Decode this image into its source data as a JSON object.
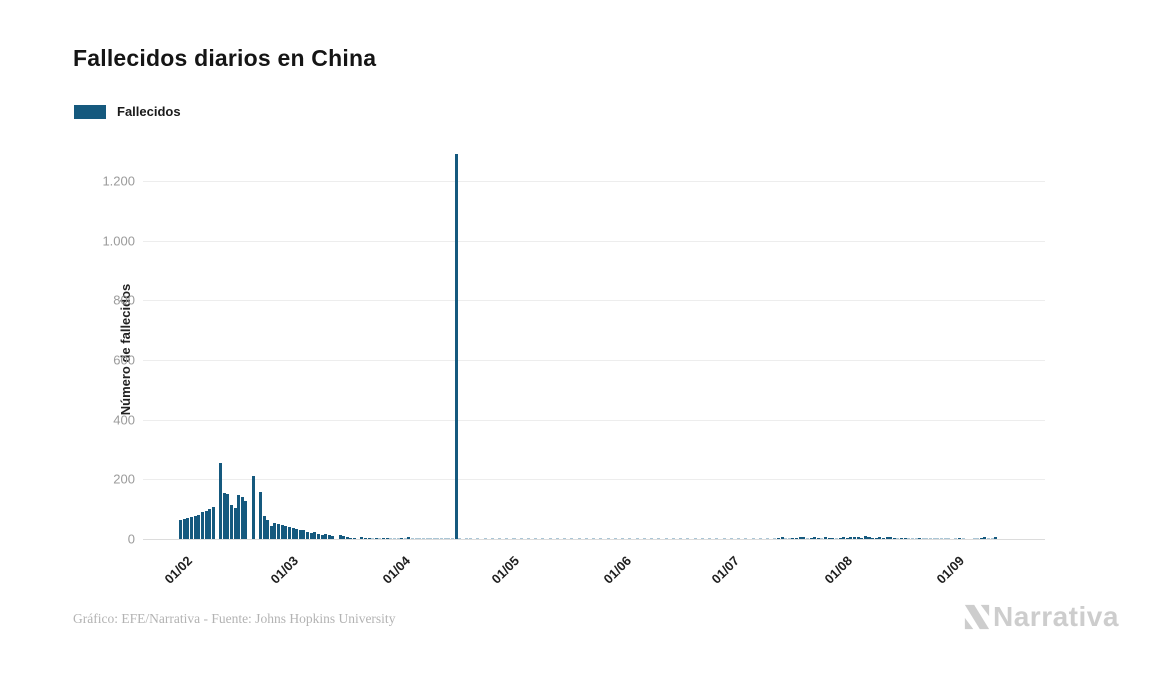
{
  "title": "Fallecidos diarios en China",
  "legend": {
    "label": "Fallecidos",
    "color": "#15597e"
  },
  "y_axis": {
    "title": "Número de fallecidos",
    "tick_labels": [
      "0",
      "200",
      "400",
      "600",
      "800",
      "1.000",
      "1.200"
    ],
    "tick_values": [
      0,
      200,
      400,
      600,
      800,
      1000,
      1200
    ]
  },
  "x_axis": {
    "ticks": [
      {
        "label": "01/02",
        "index": 10
      },
      {
        "label": "01/03",
        "index": 39
      },
      {
        "label": "01/04",
        "index": 70
      },
      {
        "label": "01/05",
        "index": 100
      },
      {
        "label": "01/06",
        "index": 131
      },
      {
        "label": "01/07",
        "index": 161
      },
      {
        "label": "01/08",
        "index": 192
      },
      {
        "label": "01/09",
        "index": 223
      }
    ]
  },
  "footer": {
    "credit": "Gráfico: EFE/Narrativa - Fuente: Johns Hopkins University"
  },
  "watermark": {
    "brand": "Narrativa",
    "color": "#cdcdcd"
  },
  "chart_data": {
    "type": "bar",
    "title": "Fallecidos diarios en China",
    "series_name": "Fallecidos",
    "bar_color": "#15597e",
    "ylabel": "Número de fallecidos",
    "ylim": [
      0,
      1320
    ],
    "grid": "horizontal",
    "legend_position": "top-left",
    "x_start_date": "22/01",
    "x_month_tick_labels": [
      "01/02",
      "01/03",
      "01/04",
      "01/05",
      "01/06",
      "01/07",
      "01/08",
      "01/09"
    ],
    "peak_value": 1290,
    "values": [
      0,
      0,
      0,
      0,
      0,
      0,
      0,
      0,
      0,
      0,
      65,
      68,
      71,
      74,
      78,
      82,
      89,
      95,
      101,
      106,
      0,
      254,
      153,
      150,
      113,
      104,
      148,
      140,
      126,
      0,
      210,
      0,
      156,
      76,
      64,
      45,
      54,
      49,
      47,
      42,
      41,
      37,
      33,
      30,
      30,
      25,
      20,
      22,
      17,
      14,
      17,
      13,
      11,
      0,
      13,
      11,
      7,
      5,
      4,
      0,
      6,
      5,
      4,
      3,
      5,
      3,
      4,
      5,
      3,
      2,
      3,
      4,
      2,
      6,
      2,
      2,
      1,
      2,
      1,
      2,
      1,
      1,
      2,
      1,
      1,
      1,
      1290,
      1,
      0,
      1,
      1,
      0,
      1,
      0,
      1,
      0,
      1,
      0,
      1,
      0,
      1,
      0,
      1,
      0,
      1,
      0,
      1,
      0,
      1,
      0,
      1,
      0,
      1,
      0,
      1,
      0,
      1,
      0,
      1,
      0,
      1,
      0,
      1,
      0,
      1,
      0,
      1,
      0,
      1,
      0,
      1,
      0,
      1,
      0,
      1,
      0,
      1,
      0,
      1,
      0,
      1,
      0,
      1,
      0,
      1,
      0,
      1,
      0,
      1,
      0,
      1,
      0,
      1,
      0,
      1,
      0,
      1,
      0,
      1,
      0,
      1,
      0,
      1,
      0,
      1,
      0,
      1,
      0,
      1,
      0,
      1,
      0,
      1,
      0,
      1,
      4,
      6,
      2,
      3,
      5,
      4,
      8,
      7,
      3,
      5,
      6,
      4,
      3,
      7,
      5,
      4,
      3,
      5,
      7,
      4,
      6,
      8,
      6,
      5,
      9,
      7,
      5,
      4,
      6,
      5,
      8,
      6,
      4,
      3,
      5,
      4,
      2,
      3,
      2,
      4,
      3,
      2,
      3,
      2,
      1,
      2,
      1,
      2,
      0,
      3,
      4,
      2,
      0,
      0,
      3,
      2,
      5,
      8,
      3,
      2,
      6,
      0,
      0,
      0,
      0,
      0,
      0,
      0,
      0,
      0,
      0,
      0,
      0,
      0
    ]
  }
}
